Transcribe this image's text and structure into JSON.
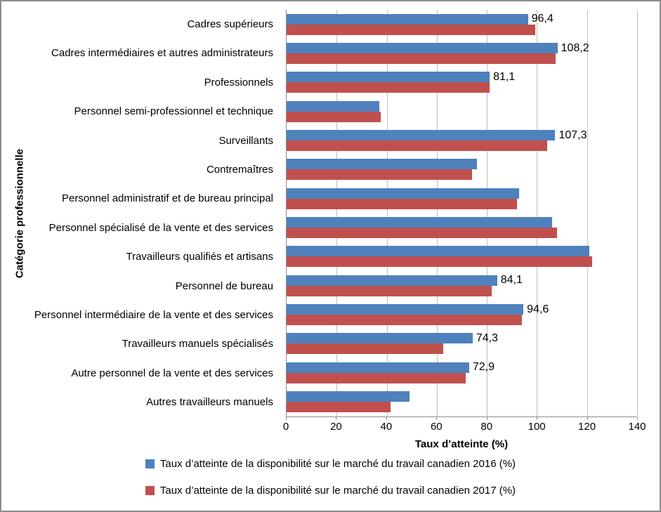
{
  "chart_data": {
    "type": "bar",
    "orientation": "horizontal",
    "title": "",
    "xlabel": "Taux d’atteinte (%)",
    "ylabel": "Catégorie professionnelle",
    "xlim": [
      0,
      140
    ],
    "xticks": [
      0,
      20,
      40,
      60,
      80,
      100,
      120,
      140
    ],
    "grid": true,
    "legend_position": "bottom",
    "categories": [
      "Cadres supérieurs",
      "Cadres intermédiaires et autres administrateurs",
      "Professionnels",
      "Personnel semi-professionnel et technique",
      "Surveillants",
      "Contremaîtres",
      "Personnel administratif et de bureau principal",
      "Personnel spécialisé de la vente et des services",
      "Travailleurs qualifiés et artisans",
      "Personnel de bureau",
      "Personnel intermédiaire de la vente et des services",
      "Travailleurs manuels spécialisés",
      "Autre personnel de la vente et des services",
      "Autres travailleurs manuels"
    ],
    "series": [
      {
        "name": "Taux d’atteinte de la disponibilité sur le marché du travail canadien 2016 (%)",
        "color": "#4f81bd",
        "values": [
          96.4,
          108.2,
          81.1,
          37.0,
          107.3,
          76.0,
          93.0,
          106.0,
          121.0,
          84.1,
          94.6,
          74.3,
          72.9,
          49.0
        ]
      },
      {
        "name": "Taux d’atteinte de la disponibilité sur le marché du travail canadien 2017 (%)",
        "color": "#c0504d",
        "values": [
          99.4,
          107.5,
          81.0,
          37.5,
          104.0,
          74.0,
          92.0,
          108.0,
          122.0,
          82.0,
          94.0,
          62.5,
          71.5,
          41.5
        ]
      }
    ],
    "bar_labels": [
      "96,4",
      "108,2",
      "81,1",
      null,
      "107,3",
      null,
      null,
      null,
      null,
      "84,1",
      "94,6",
      "74,3",
      "72,9",
      null
    ]
  }
}
